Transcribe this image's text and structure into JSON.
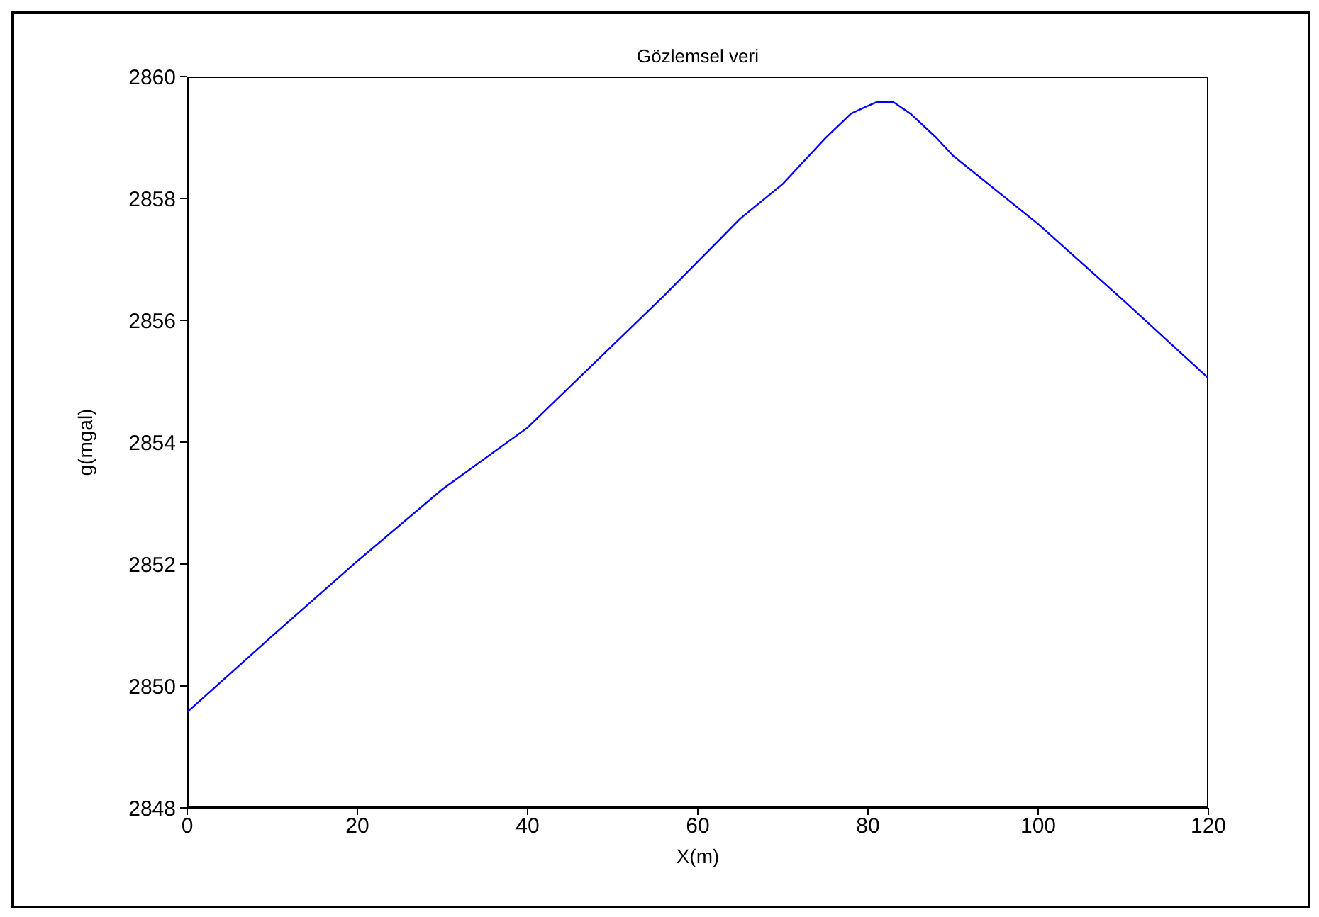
{
  "chart_data": {
    "type": "line",
    "title": "Gözlemsel veri",
    "xlabel": "X(m)",
    "ylabel": "g(mgal)",
    "x": [
      0,
      10,
      20,
      30,
      40,
      56,
      65,
      70,
      75,
      78,
      80,
      81,
      83,
      85,
      88,
      90,
      100,
      110,
      120
    ],
    "series": [
      {
        "color": "#0000ff",
        "values": [
          2849.57,
          2850.82,
          2852.05,
          2853.23,
          2854.24,
          2856.4,
          2857.67,
          2858.24,
          2858.99,
          2859.39,
          2859.52,
          2859.58,
          2859.58,
          2859.39,
          2859.0,
          2858.7,
          2857.58,
          2856.33,
          2855.05
        ]
      }
    ],
    "xlim": [
      0,
      120
    ],
    "xticks": [
      0,
      20,
      40,
      60,
      80,
      100,
      120
    ],
    "ylim": [
      2848,
      2860
    ],
    "yticks": [
      2848,
      2850,
      2852,
      2854,
      2856,
      2858,
      2860
    ],
    "grid": false,
    "marker": "none",
    "line_style": "solid"
  }
}
